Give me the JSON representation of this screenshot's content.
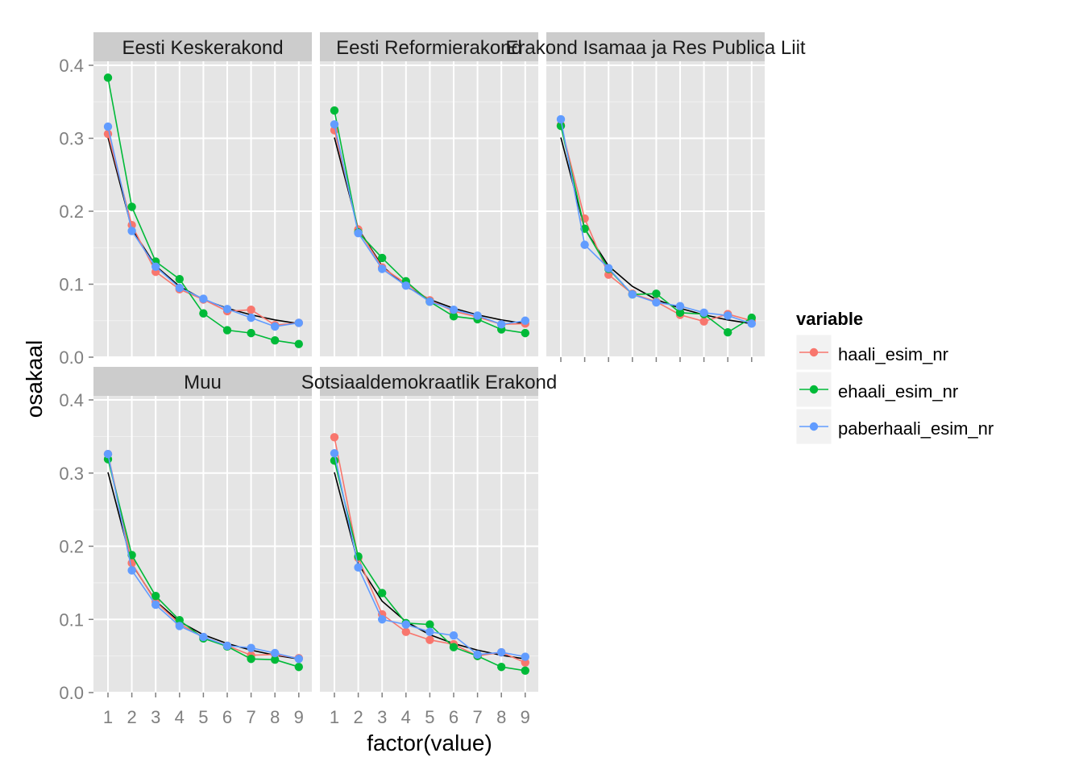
{
  "chart_data": {
    "type": "line",
    "facet_layout": "wrap 3 columns",
    "xlabel": "factor(value)",
    "ylabel": "osakaal",
    "x": [
      1,
      2,
      3,
      4,
      5,
      6,
      7,
      8,
      9
    ],
    "x_ticks": [
      "1",
      "2",
      "3",
      "4",
      "5",
      "6",
      "7",
      "8",
      "9"
    ],
    "ylim": [
      0,
      0.4
    ],
    "y_ticks": [
      "0.0",
      "0.1",
      "0.2",
      "0.3",
      "0.4"
    ],
    "grid": true,
    "legend": {
      "title": "variable",
      "placement": "right",
      "entries": [
        "haali_esim_nr",
        "ehaali_esim_nr",
        "paberhaali_esim_nr"
      ]
    },
    "colors": {
      "haali_esim_nr": "#F8766D",
      "ehaali_esim_nr": "#00BA38",
      "paberhaali_esim_nr": "#619CFF",
      "reference_curve": "#000000",
      "panel_background": "#E5E5E5",
      "strip_background": "#CCCCCC"
    },
    "reference_curve": [
      0.301,
      0.176,
      0.125,
      0.097,
      0.079,
      0.067,
      0.058,
      0.051,
      0.046
    ],
    "panels": [
      {
        "name": "Eesti Keskerakond",
        "series": [
          {
            "name": "haali_esim_nr",
            "values": [
              0.306,
              0.181,
              0.117,
              0.093,
              0.079,
              0.063,
              0.065,
              0.044,
              0.047
            ]
          },
          {
            "name": "ehaali_esim_nr",
            "values": [
              0.383,
              0.206,
              0.131,
              0.107,
              0.06,
              0.037,
              0.033,
              0.023,
              0.018
            ]
          },
          {
            "name": "paberhaali_esim_nr",
            "values": [
              0.316,
              0.173,
              0.124,
              0.095,
              0.08,
              0.066,
              0.054,
              0.042,
              0.047
            ]
          }
        ]
      },
      {
        "name": "Eesti Reformierakond",
        "series": [
          {
            "name": "haali_esim_nr",
            "values": [
              0.311,
              0.175,
              0.123,
              0.101,
              0.078,
              0.063,
              0.055,
              0.045,
              0.046
            ]
          },
          {
            "name": "ehaali_esim_nr",
            "values": [
              0.338,
              0.171,
              0.136,
              0.104,
              0.076,
              0.056,
              0.052,
              0.038,
              0.033
            ]
          },
          {
            "name": "paberhaali_esim_nr",
            "values": [
              0.319,
              0.17,
              0.121,
              0.098,
              0.076,
              0.065,
              0.057,
              0.045,
              0.05
            ]
          }
        ]
      },
      {
        "name": "Erakond Isamaa ja Res Publica Liit",
        "series": [
          {
            "name": "haali_esim_nr",
            "values": [
              0.318,
              0.19,
              0.113,
              0.087,
              0.076,
              0.058,
              0.049,
              0.059,
              0.05
            ]
          },
          {
            "name": "ehaali_esim_nr",
            "values": [
              0.317,
              0.176,
              0.121,
              0.086,
              0.087,
              0.061,
              0.059,
              0.034,
              0.054
            ]
          },
          {
            "name": "paberhaali_esim_nr",
            "values": [
              0.326,
              0.154,
              0.122,
              0.086,
              0.075,
              0.07,
              0.061,
              0.057,
              0.046
            ]
          }
        ]
      },
      {
        "name": "Muu",
        "series": [
          {
            "name": "haali_esim_nr",
            "values": [
              0.326,
              0.177,
              0.124,
              0.094,
              0.076,
              0.064,
              0.051,
              0.052,
              0.047
            ]
          },
          {
            "name": "ehaali_esim_nr",
            "values": [
              0.319,
              0.188,
              0.132,
              0.099,
              0.074,
              0.063,
              0.046,
              0.045,
              0.035
            ]
          },
          {
            "name": "paberhaali_esim_nr",
            "values": [
              0.326,
              0.167,
              0.12,
              0.091,
              0.076,
              0.064,
              0.061,
              0.054,
              0.046
            ]
          }
        ]
      },
      {
        "name": "Sotsiaaldemokraatlik Erakond",
        "series": [
          {
            "name": "haali_esim_nr",
            "values": [
              0.349,
              0.184,
              0.107,
              0.083,
              0.072,
              0.066,
              0.05,
              0.055,
              0.041
            ]
          },
          {
            "name": "ehaali_esim_nr",
            "values": [
              0.317,
              0.186,
              0.136,
              0.095,
              0.093,
              0.062,
              0.05,
              0.035,
              0.03
            ]
          },
          {
            "name": "paberhaali_esim_nr",
            "values": [
              0.327,
              0.171,
              0.1,
              0.093,
              0.083,
              0.078,
              0.052,
              0.055,
              0.049
            ]
          }
        ]
      }
    ]
  }
}
